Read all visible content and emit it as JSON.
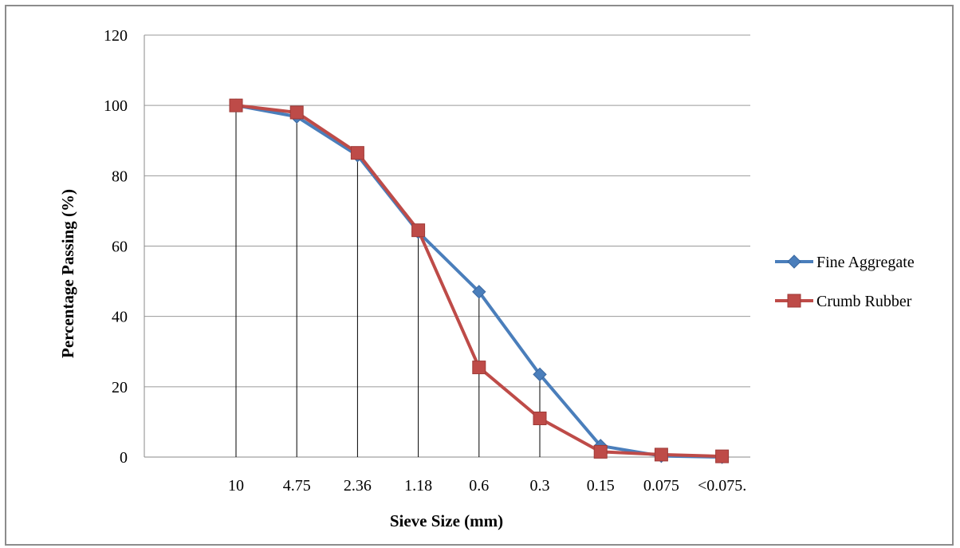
{
  "chart_data": {
    "type": "line",
    "title": "",
    "xlabel": "Sieve Size (mm)",
    "ylabel": "Percentage Passing (%)",
    "categories": [
      "10",
      "4.75",
      "2.36",
      "1.18",
      "0.6",
      "0.3",
      "0.15",
      "0.075",
      "<0.075."
    ],
    "ylim": [
      0,
      120
    ],
    "yticks": [
      0,
      20,
      40,
      60,
      80,
      100,
      120
    ],
    "grid": true,
    "legend_position": "right",
    "series": [
      {
        "name": "Fine Aggregate",
        "color": "#4a7ebb",
        "marker": "diamond",
        "values": [
          100,
          96.8,
          85.8,
          64,
          47,
          23.5,
          3.2,
          0.3,
          0
        ]
      },
      {
        "name": "Crumb Rubber",
        "color": "#be4b48",
        "marker": "square",
        "values": [
          100,
          98,
          86.5,
          64.5,
          25.5,
          11,
          1.5,
          0.7,
          0.2
        ]
      }
    ]
  }
}
